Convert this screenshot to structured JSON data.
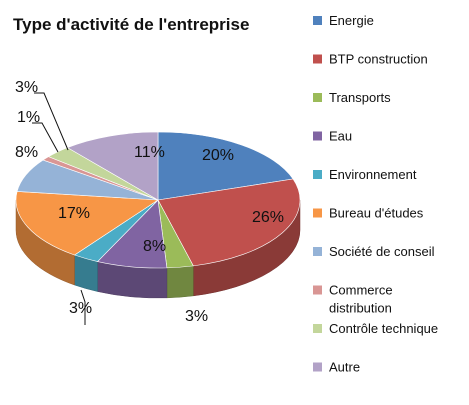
{
  "chart_data": {
    "type": "pie",
    "title": "Type d'activité de l'entreprise",
    "categories": [
      "Energie",
      "BTP construction",
      "Transports",
      "Eau",
      "Environnement",
      "Bureau d'études",
      "Société de conseil",
      "Commerce distribution",
      "Contrôle technique",
      "Autre"
    ],
    "values": [
      20,
      26,
      3,
      8,
      3,
      17,
      8,
      1,
      3,
      11
    ],
    "value_labels": [
      "20%",
      "26%",
      "3%",
      "8%",
      "3%",
      "17%",
      "8%",
      "1%",
      "3%",
      "11%"
    ],
    "colors": [
      "#4f81bd",
      "#c0504d",
      "#9bbb59",
      "#8064a2",
      "#4bacc6",
      "#f79646",
      "#95b3d7",
      "#d99694",
      "#c3d69b",
      "#b2a2c7"
    ],
    "legend_position": "right",
    "style": "3d-tilted"
  },
  "legend": {
    "items": [
      {
        "lines": [
          "Energie"
        ]
      },
      {
        "lines": [
          "BTP construction"
        ]
      },
      {
        "lines": [
          "Transports"
        ]
      },
      {
        "lines": [
          "Eau"
        ]
      },
      {
        "lines": [
          "Environnement"
        ]
      },
      {
        "lines": [
          "Bureau d'études"
        ]
      },
      {
        "lines": [
          "Société de conseil"
        ]
      },
      {
        "lines": [
          "Commerce",
          "distribution"
        ]
      },
      {
        "lines": [
          "Contrôle technique"
        ]
      },
      {
        "lines": [
          "Autre"
        ]
      }
    ]
  }
}
